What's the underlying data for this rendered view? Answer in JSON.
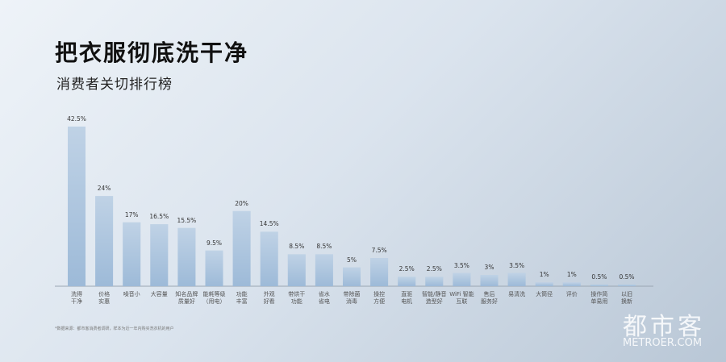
{
  "title": "把衣服彻底洗干净",
  "subtitle": "消费者关切排行榜",
  "chart_data": {
    "type": "bar",
    "categories": [
      "洗得\n干净",
      "价格\n实惠",
      "噪音小",
      "大容量",
      "知名品牌\n质量好",
      "能耗等级\n（用电）",
      "功能\n丰富",
      "外观\n好看",
      "带烘干\n功能",
      "省水\n省电",
      "带除菌\n消毒",
      "操控\n方便",
      "直驱\n电机",
      "智能/静音\n造型好",
      "WiFi 智能\n互联",
      "售后\n服务好",
      "易清洗",
      "大筒径",
      "评价",
      "操作简\n单易用",
      "以旧\n换新"
    ],
    "values": [
      42.5,
      24,
      17,
      16.5,
      15.5,
      9.5,
      20,
      14.5,
      8.5,
      8.5,
      5,
      7.5,
      2.5,
      2.5,
      3.5,
      3,
      3.5,
      1,
      1,
      0.5,
      0.5
    ],
    "value_labels": [
      "42.5%",
      "24%",
      "17%",
      "16.5%",
      "15.5%",
      "9.5%",
      "20%",
      "14.5%",
      "8.5%",
      "8.5%",
      "5%",
      "7.5%",
      "2.5%",
      "2.5%",
      "3.5%",
      "3%",
      "3.5%",
      "1%",
      "1%",
      "0.5%",
      "0.5%"
    ],
    "color": "#9dbad8"
  },
  "note": "*数据来源：都市客消费者调研，样本为近一年内购买洗衣机的用户",
  "watermark": {
    "name": "都市客",
    "site": "METROER.COM"
  }
}
